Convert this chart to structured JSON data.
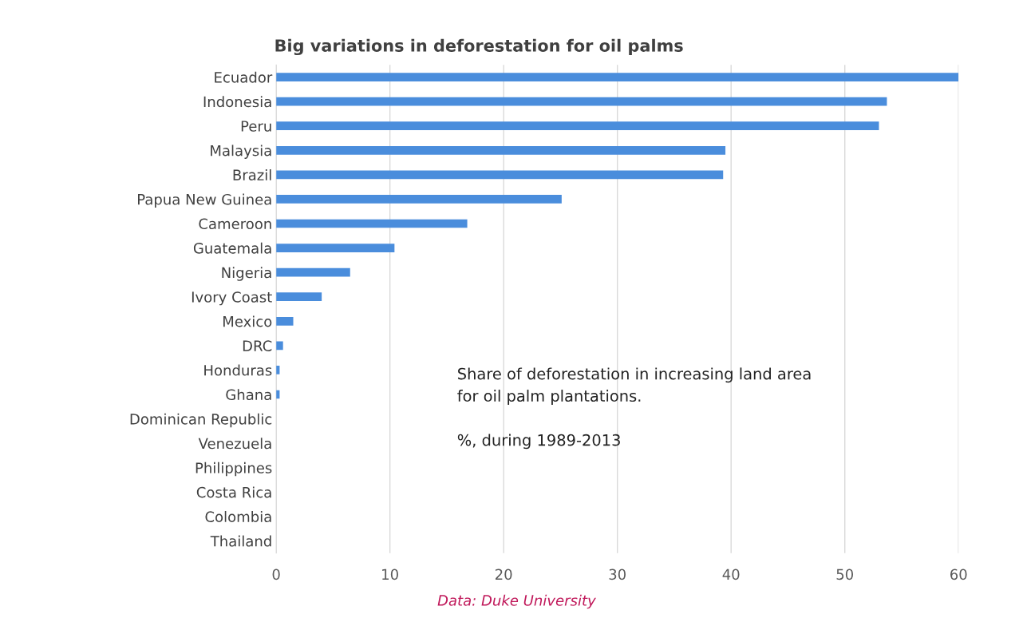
{
  "chart_data": {
    "type": "bar",
    "orientation": "horizontal",
    "title": "Big variations in deforestation for oil palms",
    "categories": [
      "Ecuador",
      "Indonesia",
      "Peru",
      "Malaysia",
      "Brazil",
      "Papua New Guinea",
      "Cameroon",
      "Guatemala",
      "Nigeria",
      "Ivory Coast",
      "Mexico",
      "DRC",
      "Honduras",
      "Ghana",
      "Dominican Republic",
      "Venezuela",
      "Philippines",
      "Costa Rica",
      "Colombia",
      "Thailand"
    ],
    "values": [
      60,
      53.7,
      53,
      39.5,
      39.3,
      25.1,
      16.8,
      10.4,
      6.5,
      4,
      1.5,
      0.6,
      0.3,
      0.3,
      0,
      0,
      0,
      0,
      0,
      0
    ],
    "color": "#4a8ddc",
    "xlim": [
      0,
      60
    ],
    "xticks": [
      0,
      10,
      20,
      30,
      40,
      50,
      60
    ],
    "grid": "x",
    "annotations": [
      {
        "text": "Share of deforestation in increasing land area\nfor oil palm plantations.\n\n%, during 1989-2013"
      },
      "Data: Duke University"
    ]
  }
}
